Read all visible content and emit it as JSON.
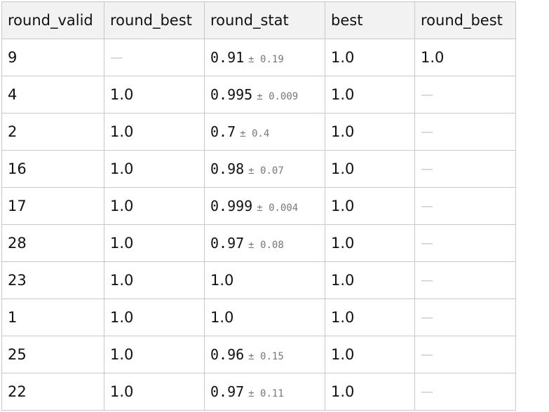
{
  "table": {
    "columns": [
      "round_valid",
      "round_best",
      "round_stat",
      "best",
      "round_best"
    ],
    "rows": [
      {
        "round_valid": "9",
        "round_best": "—",
        "stat_value": "0.91",
        "stat_err": "± 0.19",
        "best": "1.0",
        "round_best_2": "1.0"
      },
      {
        "round_valid": "4",
        "round_best": "1.0",
        "stat_value": "0.995",
        "stat_err": "± 0.009",
        "best": "1.0",
        "round_best_2": "—"
      },
      {
        "round_valid": "2",
        "round_best": "1.0",
        "stat_value": "0.7",
        "stat_err": "± 0.4",
        "best": "1.0",
        "round_best_2": "—"
      },
      {
        "round_valid": "16",
        "round_best": "1.0",
        "stat_value": "0.98",
        "stat_err": "± 0.07",
        "best": "1.0",
        "round_best_2": "—"
      },
      {
        "round_valid": "17",
        "round_best": "1.0",
        "stat_value": "0.999",
        "stat_err": "± 0.004",
        "best": "1.0",
        "round_best_2": "—"
      },
      {
        "round_valid": "28",
        "round_best": "1.0",
        "stat_value": "0.97",
        "stat_err": "± 0.08",
        "best": "1.0",
        "round_best_2": "—"
      },
      {
        "round_valid": "23",
        "round_best": "1.0",
        "stat_plain": "1.0",
        "best": "1.0",
        "round_best_2": "—"
      },
      {
        "round_valid": "1",
        "round_best": "1.0",
        "stat_plain": "1.0",
        "best": "1.0",
        "round_best_2": "—"
      },
      {
        "round_valid": "25",
        "round_best": "1.0",
        "stat_value": "0.96",
        "stat_err": "± 0.15",
        "best": "1.0",
        "round_best_2": "—"
      },
      {
        "round_valid": "22",
        "round_best": "1.0",
        "stat_value": "0.97",
        "stat_err": "± 0.11",
        "best": "1.0",
        "round_best_2": "—"
      }
    ]
  }
}
